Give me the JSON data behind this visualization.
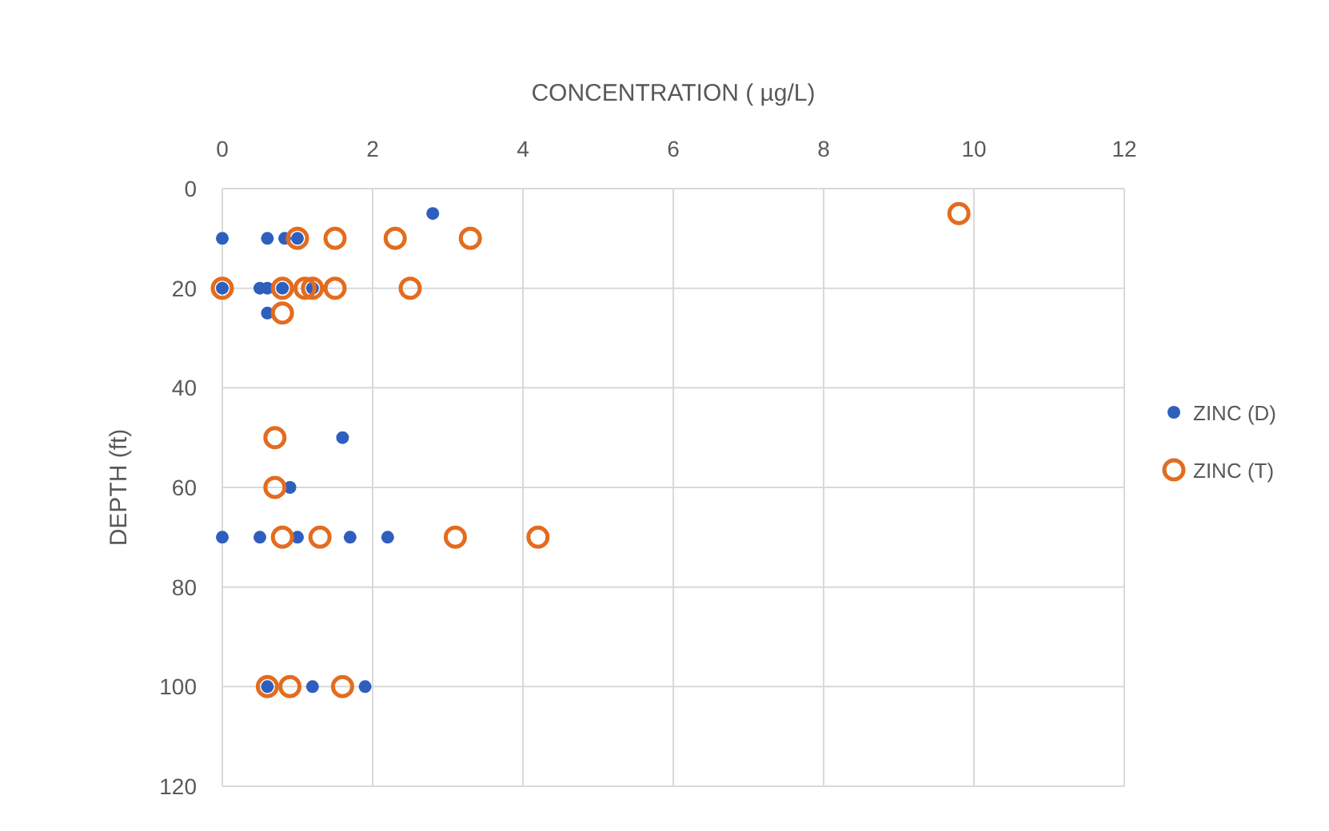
{
  "chart_data": {
    "type": "scatter",
    "xlabel": "CONCENTRATION ( µg/L)",
    "ylabel": "DEPTH (ft)",
    "xlim": [
      0,
      12
    ],
    "xticks": [
      0,
      2,
      4,
      6,
      8,
      10,
      12
    ],
    "ylim": [
      120,
      0
    ],
    "yticks": [
      0,
      20,
      40,
      60,
      80,
      100,
      120
    ],
    "grid": true,
    "legend": "right",
    "series": [
      {
        "name": "ZINC (D)",
        "color": "#2e5fbf",
        "marker": "circle",
        "x": [
          2.8,
          0,
          0.6,
          0.83,
          1.0,
          0,
          0.5,
          0.6,
          0.8,
          1.2,
          0.6,
          1.6,
          0.9,
          0,
          0.5,
          1.0,
          1.7,
          2.2,
          0.6,
          1.2,
          1.9
        ],
        "values": [
          5,
          10,
          10,
          10,
          10,
          20,
          20,
          20,
          20,
          20,
          25,
          50,
          60,
          70,
          70,
          70,
          70,
          70,
          100,
          100,
          100
        ]
      },
      {
        "name": "ZINC (T)",
        "color": "#e36c1e",
        "marker": "open_circle",
        "x": [
          9.8,
          1.0,
          1.5,
          2.3,
          3.3,
          0,
          0.8,
          1.1,
          1.2,
          1.5,
          2.5,
          0.8,
          0.7,
          0.7,
          0.8,
          1.3,
          3.1,
          4.2,
          0.6,
          0.9,
          1.6
        ],
        "values": [
          5,
          10,
          10,
          10,
          10,
          20,
          20,
          20,
          20,
          20,
          20,
          25,
          50,
          60,
          70,
          70,
          70,
          70,
          100,
          100,
          100
        ]
      }
    ]
  }
}
